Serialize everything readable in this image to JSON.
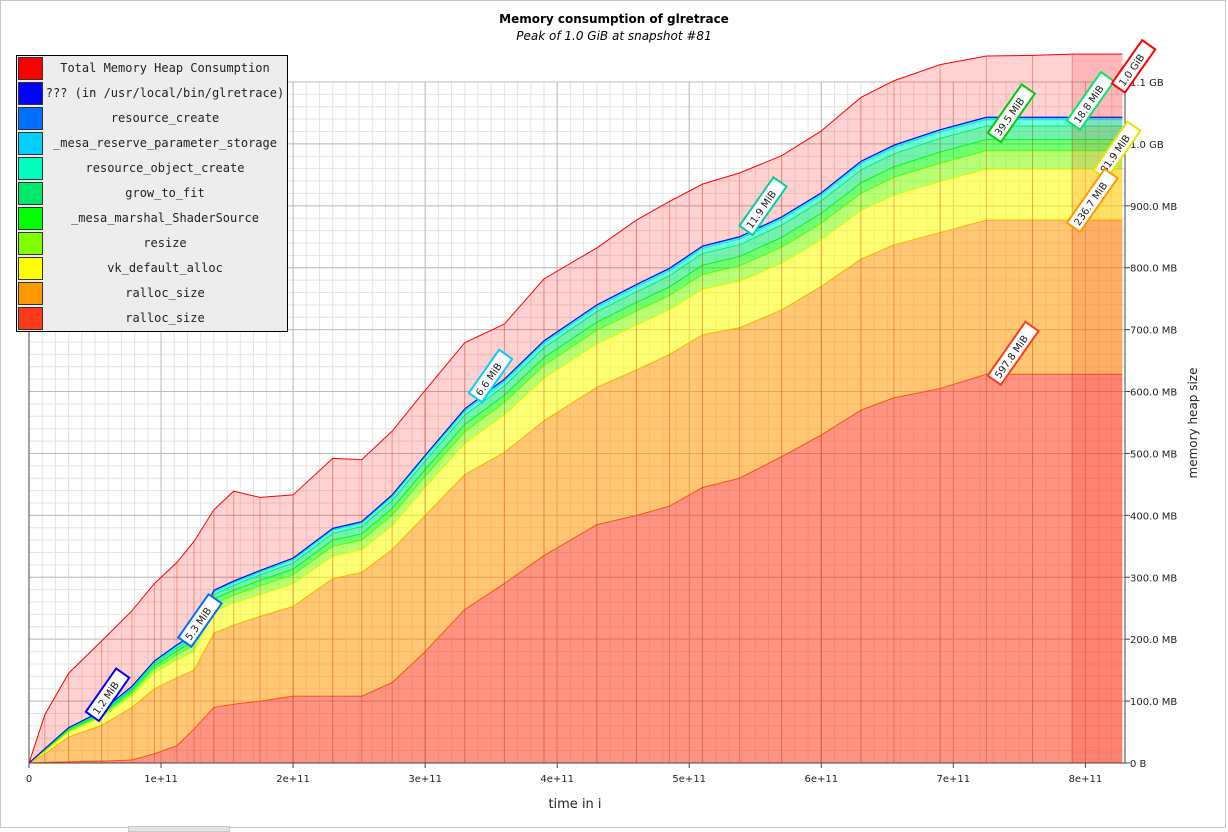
{
  "chart_data": {
    "type": "area",
    "title": "Memory consumption of glretrace",
    "subtitle": "Peak of 1.0 GiB at snapshot #81",
    "xlabel": "time in i",
    "ylabel": "memory heap size",
    "xlim": [
      0,
      830000000000
    ],
    "ylim": [
      0,
      1100
    ],
    "x_ticks": [
      {
        "value": 0,
        "label": "0"
      },
      {
        "value": 100000000000,
        "label": "1e+11"
      },
      {
        "value": 200000000000,
        "label": "2e+11"
      },
      {
        "value": 300000000000,
        "label": "3e+11"
      },
      {
        "value": 400000000000,
        "label": "4e+11"
      },
      {
        "value": 500000000000,
        "label": "5e+11"
      },
      {
        "value": 600000000000,
        "label": "6e+11"
      },
      {
        "value": 700000000000,
        "label": "7e+11"
      },
      {
        "value": 800000000000,
        "label": "8e+11"
      }
    ],
    "y_ticks": [
      {
        "value": 0,
        "label": "0 B"
      },
      {
        "value": 100,
        "label": "100.0 MB"
      },
      {
        "value": 200,
        "label": "200.0 MB"
      },
      {
        "value": 300,
        "label": "300.0 MB"
      },
      {
        "value": 400,
        "label": "400.0 MB"
      },
      {
        "value": 500,
        "label": "500.0 MB"
      },
      {
        "value": 600,
        "label": "600.0 MB"
      },
      {
        "value": 700,
        "label": "700.0 MB"
      },
      {
        "value": 800,
        "label": "800.0 MB"
      },
      {
        "value": 900,
        "label": "900.0 MB"
      },
      {
        "value": 1000,
        "label": "1.0 GB"
      },
      {
        "value": 1100,
        "label": "1.1 GB"
      }
    ],
    "y_axis_side": "right",
    "grid": true,
    "legend_position": "top-left",
    "x": [
      0,
      12000000000,
      30000000000,
      55000000000,
      78000000000,
      95000000000,
      112000000000,
      125000000000,
      140000000000,
      155000000000,
      175000000000,
      200000000000,
      230000000000,
      252000000000,
      275000000000,
      300000000000,
      330000000000,
      360000000000,
      390000000000,
      430000000000,
      460000000000,
      485000000000,
      510000000000,
      538000000000,
      570000000000,
      600000000000,
      630000000000,
      655000000000,
      690000000000,
      725000000000,
      760000000000,
      790000000000,
      828000000000
    ],
    "series": [
      {
        "name": "ralloc_size",
        "color": "#ff3a1a",
        "values": [
          0,
          1,
          2,
          3,
          5,
          15,
          28,
          55,
          90,
          95,
          100,
          108,
          108,
          108,
          130,
          180,
          248,
          290,
          335,
          385,
          400,
          415,
          445,
          460,
          495,
          530,
          570,
          590,
          605,
          628,
          628,
          628,
          628
        ]
      },
      {
        "name": "ralloc_size",
        "color": "#ff9900",
        "values": [
          0,
          14,
          40,
          58,
          85,
          105,
          110,
          95,
          120,
          128,
          137,
          145,
          190,
          200,
          215,
          220,
          218,
          212,
          218,
          222,
          235,
          245,
          247,
          243,
          237,
          240,
          244,
          247,
          252,
          249,
          249,
          249,
          249
        ]
      },
      {
        "name": "vk_default_alloc",
        "color": "#ffff00",
        "values": [
          0,
          4,
          8,
          12,
          18,
          25,
          28,
          30,
          35,
          35,
          35,
          36,
          36,
          36,
          38,
          45,
          50,
          60,
          68,
          70,
          72,
          72,
          73,
          75,
          75,
          75,
          78,
          80,
          82,
          82,
          82,
          82,
          82
        ]
      },
      {
        "name": "resize",
        "color": "#80ff00",
        "values": [
          0,
          1,
          2,
          3,
          5,
          7,
          9,
          10,
          12,
          13,
          14,
          15,
          16,
          16,
          17,
          18,
          19,
          20,
          21,
          22,
          23,
          23,
          24,
          25,
          26,
          27,
          28,
          29,
          30,
          30,
          30,
          30,
          30
        ]
      },
      {
        "name": "_mesa_marshal_ShaderSource",
        "color": "#00ff00",
        "values": [
          0,
          1,
          2,
          3,
          4,
          5,
          6,
          7,
          8,
          8,
          9,
          9,
          10,
          10,
          11,
          11,
          12,
          12,
          13,
          13,
          14,
          14,
          15,
          15,
          16,
          16,
          17,
          17,
          18,
          18,
          18,
          18,
          18
        ]
      },
      {
        "name": "grow_to_fit",
        "color": "#00e86a",
        "values": [
          0,
          1,
          1,
          2,
          3,
          4,
          5,
          6,
          7,
          8,
          9,
          10,
          11,
          12,
          13,
          14,
          15,
          15,
          16,
          17,
          17,
          18,
          19,
          19,
          20,
          20,
          21,
          21,
          22,
          22,
          22,
          22,
          22
        ]
      },
      {
        "name": "resource_object_create",
        "color": "#00ffbf",
        "values": [
          0,
          1,
          1,
          1,
          2,
          2,
          3,
          3,
          4,
          4,
          4,
          5,
          5,
          5,
          6,
          6,
          6,
          7,
          7,
          7,
          8,
          8,
          8,
          9,
          9,
          9,
          10,
          10,
          10,
          10,
          10,
          10,
          10
        ]
      },
      {
        "name": "_mesa_reserve_parameter_storage",
        "color": "#00cfff",
        "values": [
          0,
          0,
          1,
          1,
          1,
          1,
          1,
          1,
          2,
          2,
          2,
          2,
          2,
          2,
          2,
          2,
          3,
          3,
          3,
          3,
          3,
          3,
          3,
          3,
          3,
          3,
          3,
          3,
          3,
          3,
          3,
          3,
          3
        ]
      },
      {
        "name": "resource_create",
        "color": "#0070ff",
        "values": [
          0,
          0,
          0,
          1,
          1,
          1,
          1,
          1,
          1,
          1,
          1,
          1,
          1,
          1,
          1,
          1,
          1,
          1,
          1,
          1,
          1,
          1,
          1,
          1,
          1,
          1,
          1,
          1,
          1,
          1,
          1,
          1,
          1
        ]
      },
      {
        "name": "??? (in /usr/local/bin/glretrace)",
        "color": "#0000ff",
        "values": [
          0,
          0,
          0,
          0,
          0,
          0,
          0,
          0,
          0,
          0,
          0,
          0,
          0,
          0,
          0,
          0,
          0,
          0,
          0,
          0,
          0,
          0,
          0,
          0,
          0,
          0,
          0,
          0,
          0,
          0,
          0,
          0,
          0
        ]
      },
      {
        "name": "Total Memory Heap Consumption",
        "color": "#ff0000",
        "values": [
          0,
          55,
          88,
          113,
          122,
          125,
          133,
          150,
          130,
          145,
          118,
          102,
          113,
          100,
          103,
          105,
          107,
          89,
          100,
          92,
          104,
          108,
          100,
          103,
          99,
          100,
          103,
          104,
          105,
          99,
          100,
          102,
          102
        ]
      }
    ],
    "annotations": [
      {
        "text": "1.2 MiB",
        "x": 45000000000,
        "y": 85,
        "color": "#0000ff"
      },
      {
        "text": "5.3 MiB",
        "x": 115000000000,
        "y": 205,
        "color": "#0070ff"
      },
      {
        "text": "6.6 MiB",
        "x": 335000000000,
        "y": 600,
        "color": "#00cfff"
      },
      {
        "text": "11.9 MiB",
        "x": 540000000000,
        "y": 870,
        "color": "#00d0a0"
      },
      {
        "text": "39.5 MiB",
        "x": 728000000000,
        "y": 1020,
        "color": "#00cc00"
      },
      {
        "text": "18.8 MiB",
        "x": 788000000000,
        "y": 1040,
        "color": "#00e86a"
      },
      {
        "text": "81.9 MiB",
        "x": 808000000000,
        "y": 960,
        "color": "#e6e600"
      },
      {
        "text": "236.7 MiB",
        "x": 788000000000,
        "y": 875,
        "color": "#ff9900"
      },
      {
        "text": "597.8 MiB",
        "x": 728000000000,
        "y": 628,
        "color": "#ff3a1a"
      },
      {
        "text": "1.0 GiB",
        "x": 822000000000,
        "y": 1100,
        "color": "#ff0000"
      }
    ]
  }
}
